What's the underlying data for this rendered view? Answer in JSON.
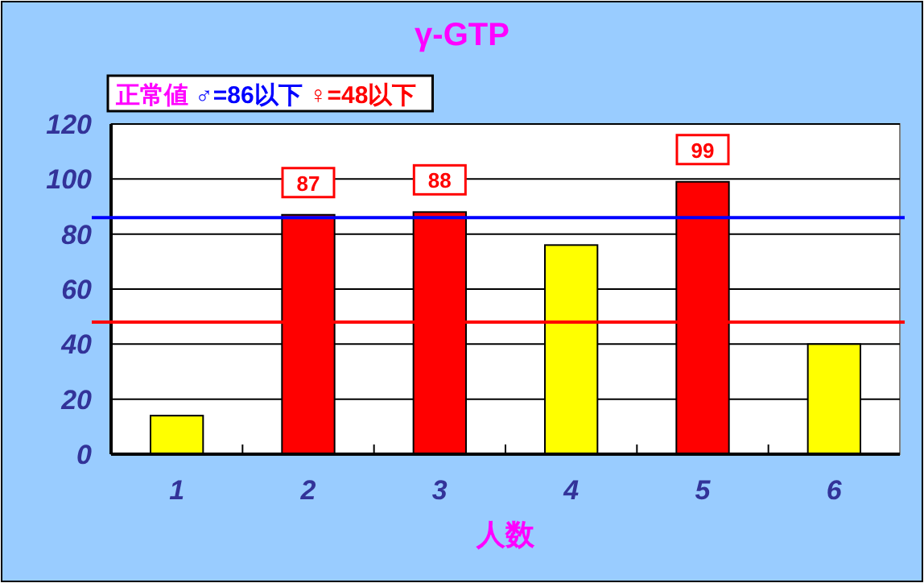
{
  "chart_data": {
    "type": "bar",
    "title": "γ-GTP",
    "xlabel": "人数",
    "categories": [
      "1",
      "2",
      "3",
      "4",
      "5",
      "6"
    ],
    "values": [
      14,
      87,
      88,
      76,
      99,
      40
    ],
    "colors": [
      "#ffff00",
      "#ff0000",
      "#ff0000",
      "#ffff00",
      "#ff0000",
      "#ffff00"
    ],
    "value_labels": [
      null,
      "87",
      "88",
      null,
      "99",
      null
    ],
    "ylim": [
      0,
      120
    ],
    "yticks": [
      0,
      20,
      40,
      60,
      80,
      100,
      120
    ],
    "grid": "y",
    "annotations": [
      "正常値"
    ],
    "ref_lines": [
      {
        "axis": "y",
        "value": 86,
        "label": "♂=86以下",
        "color": "#0000ff"
      },
      {
        "axis": "y",
        "value": 48,
        "label": "♀=48以下",
        "color": "#ff0000"
      }
    ]
  }
}
